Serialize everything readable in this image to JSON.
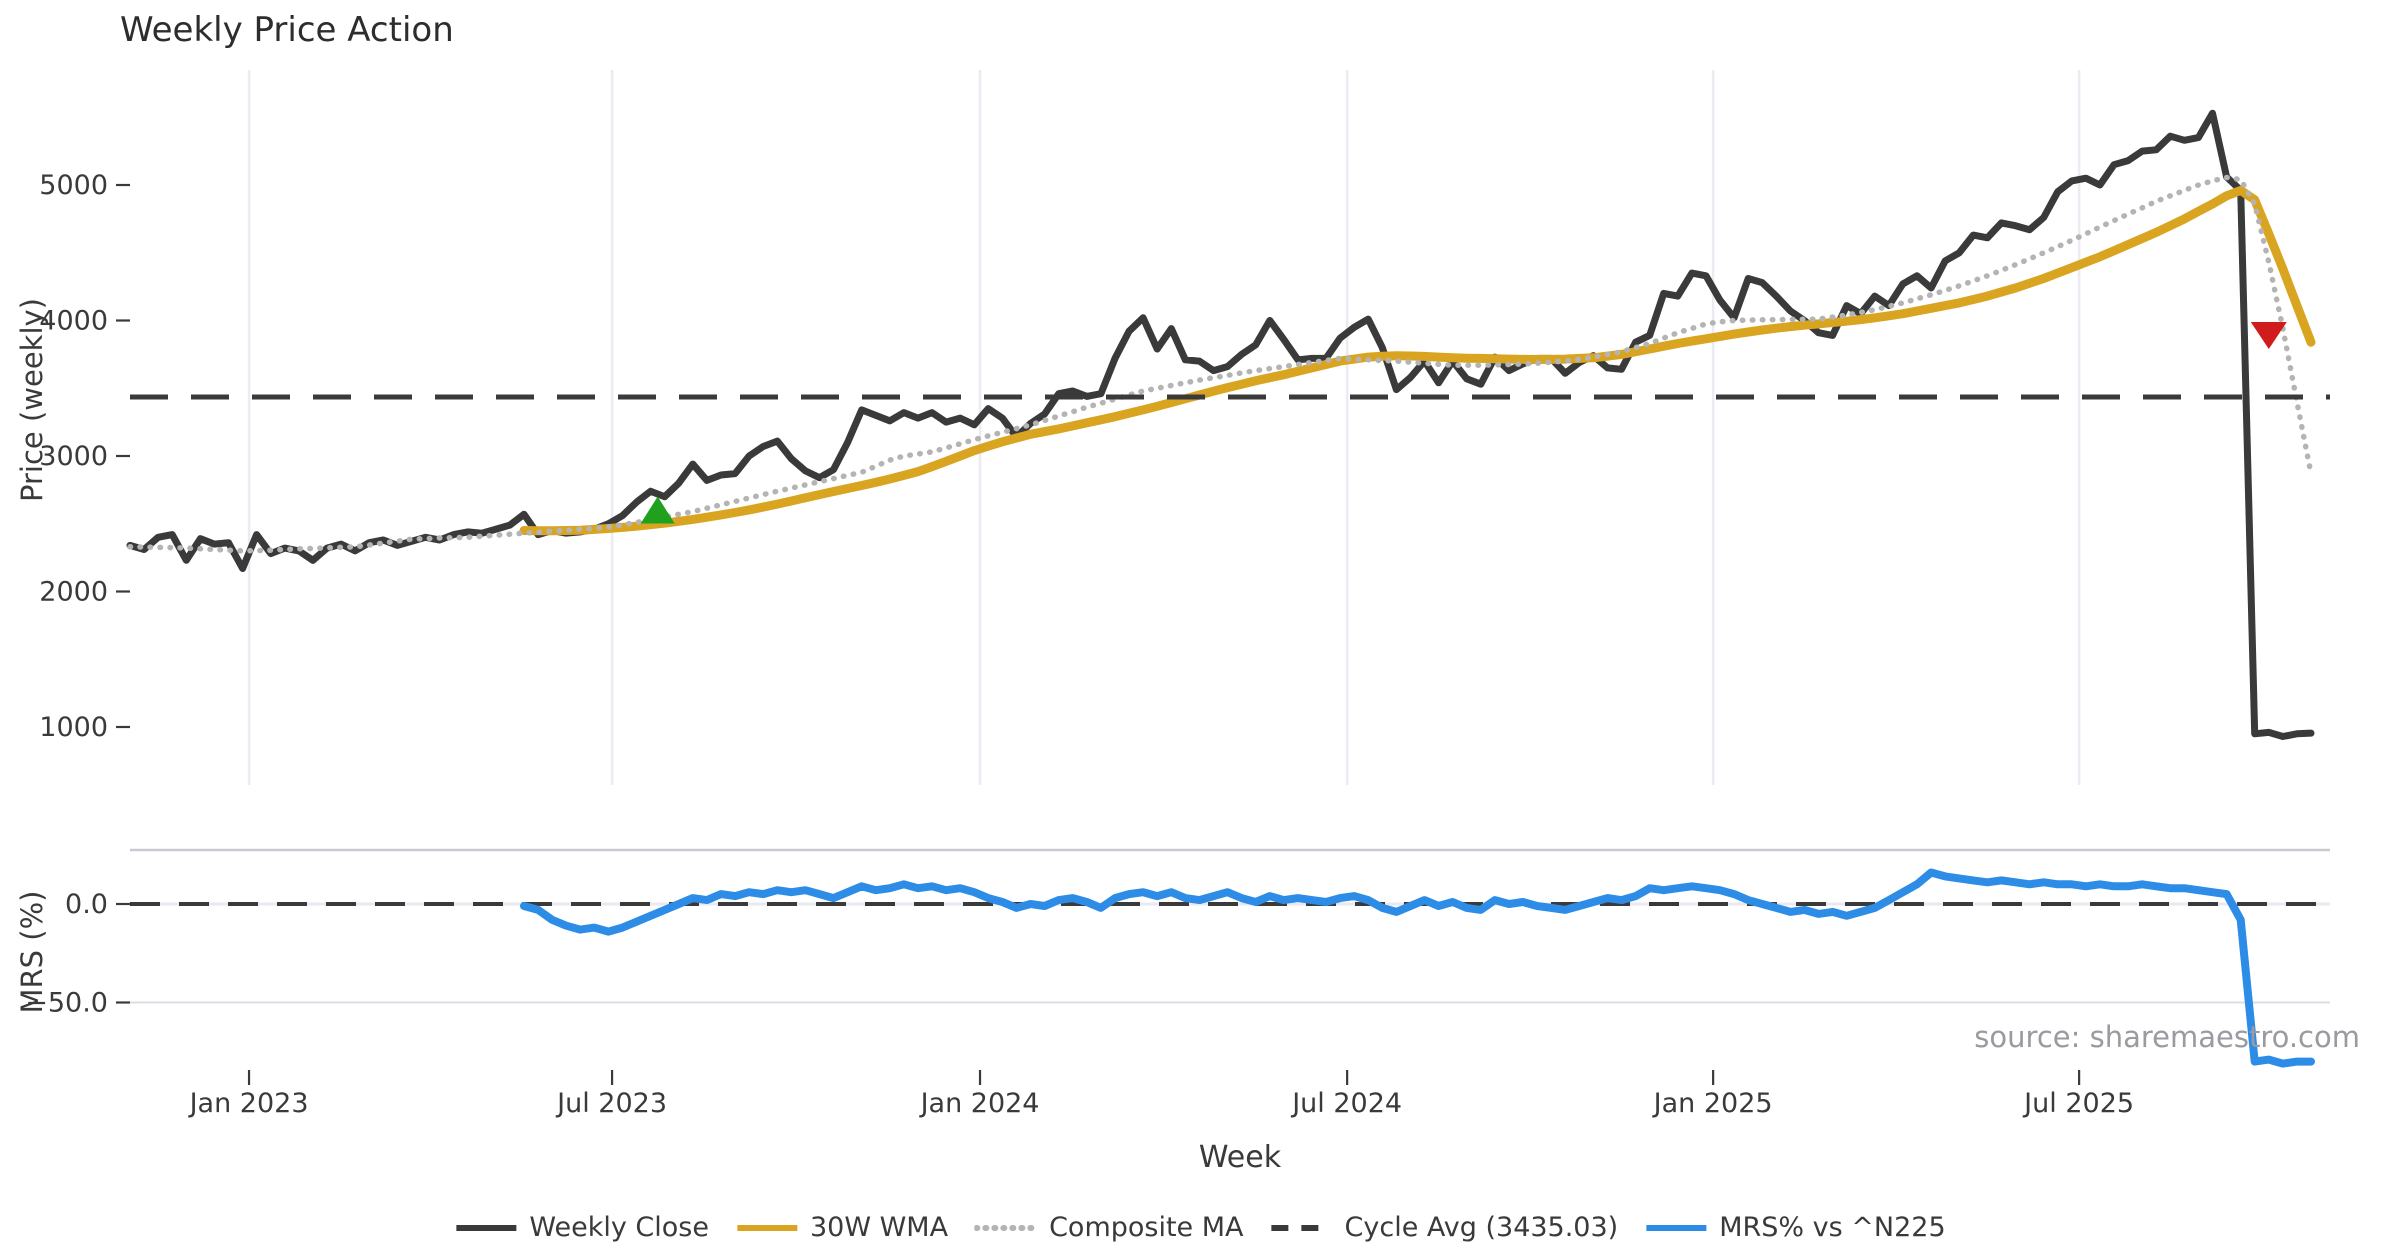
{
  "title": "Weekly Price Action",
  "axes": {
    "price_label": "Price (weekly)",
    "mrs_label": "MRS (%)",
    "x_label": "Week"
  },
  "source": "source: sharemaestro.com",
  "legend": [
    {
      "label": "Weekly Close",
      "color": "#3a3a3a",
      "style": "solid"
    },
    {
      "label": "30W WMA",
      "color": "#d9a521",
      "style": "solid"
    },
    {
      "label": "Composite MA",
      "color": "#b4b4b4",
      "style": "dotted"
    },
    {
      "label": "Cycle Avg (3435.03)",
      "color": "#3a3a3a",
      "style": "dashed"
    },
    {
      "label": "MRS% vs ^N225",
      "color": "#2d8de6",
      "style": "solid"
    }
  ],
  "chart_data": {
    "type": "line",
    "title": "Weekly Price Action",
    "xlabel": "Week",
    "ylabel_top": "Price (weekly)",
    "ylabel_bottom": "MRS (%)",
    "x_unit": "week_index",
    "weeks_total": 156,
    "x_ticks": [
      {
        "label": "Jan 2023",
        "week": 8.46
      },
      {
        "label": "Jul 2023",
        "week": 34.26
      },
      {
        "label": "Jan 2024",
        "week": 60.41
      },
      {
        "label": "Jul 2024",
        "week": 86.5
      },
      {
        "label": "Jan 2025",
        "week": 112.51
      },
      {
        "label": "Jul 2025",
        "week": 138.52
      }
    ],
    "price_axis": {
      "ticks": [
        1000,
        2000,
        3000,
        4000,
        5000
      ],
      "range": [
        600,
        5900
      ],
      "grid": "vertical-only"
    },
    "mrs_axis": {
      "ticks": [
        0.0,
        -50.0
      ],
      "tick_labels": [
        "0.0",
        "−50.0"
      ],
      "range": [
        -90,
        27
      ]
    },
    "cycle_avg": 3435.03,
    "series": [
      {
        "name": "Weekly Close",
        "panel": "price",
        "color": "#3a3a3a",
        "style": "solid",
        "width": 7,
        "start_week": 0,
        "values": [
          2340,
          2310,
          2400,
          2420,
          2230,
          2390,
          2350,
          2360,
          2170,
          2420,
          2280,
          2320,
          2300,
          2230,
          2320,
          2350,
          2300,
          2360,
          2380,
          2340,
          2370,
          2400,
          2380,
          2420,
          2440,
          2430,
          2460,
          2490,
          2570,
          2420,
          2450,
          2430,
          2440,
          2460,
          2500,
          2560,
          2660,
          2740,
          2700,
          2800,
          2940,
          2820,
          2860,
          2870,
          3000,
          3070,
          3110,
          2980,
          2890,
          2840,
          2900,
          3100,
          3340,
          3300,
          3260,
          3320,
          3280,
          3320,
          3250,
          3280,
          3230,
          3350,
          3280,
          3140,
          3240,
          3310,
          3460,
          3480,
          3440,
          3460,
          3720,
          3920,
          4020,
          3790,
          3940,
          3710,
          3700,
          3630,
          3660,
          3750,
          3820,
          4000,
          3860,
          3710,
          3720,
          3720,
          3870,
          3950,
          4010,
          3800,
          3490,
          3580,
          3700,
          3540,
          3700,
          3570,
          3530,
          3730,
          3630,
          3680,
          3720,
          3720,
          3610,
          3690,
          3740,
          3650,
          3640,
          3840,
          3890,
          4200,
          4180,
          4350,
          4330,
          4150,
          4020,
          4310,
          4280,
          4180,
          4070,
          4000,
          3910,
          3890,
          4110,
          4050,
          4180,
          4110,
          4270,
          4330,
          4240,
          4440,
          4500,
          4630,
          4610,
          4720,
          4700,
          4670,
          4760,
          4950,
          5030,
          5050,
          5000,
          5150,
          5180,
          5250,
          5260,
          5360,
          5330,
          5350,
          5530,
          5060,
          4960,
          950,
          960,
          930,
          950,
          955
        ]
      },
      {
        "name": "30W WMA",
        "panel": "price",
        "color": "#d9a521",
        "style": "solid",
        "width": 9,
        "start_week": 28,
        "values": [
          2450,
          2449,
          2448,
          2450,
          2452,
          2458,
          2465,
          2473,
          2482,
          2493,
          2505,
          2518,
          2532,
          2548,
          2565,
          2583,
          2602,
          2623,
          2645,
          2668,
          2692,
          2715,
          2738,
          2760,
          2782,
          2806,
          2830,
          2857,
          2885,
          2922,
          2960,
          3000,
          3040,
          3073,
          3105,
          3133,
          3160,
          3180,
          3200,
          3222,
          3245,
          3267,
          3290,
          3315,
          3340,
          3367,
          3395,
          3422,
          3450,
          3478,
          3505,
          3530,
          3555,
          3578,
          3600,
          3625,
          3650,
          3675,
          3700,
          3715,
          3730,
          3736,
          3740,
          3738,
          3735,
          3730,
          3725,
          3722,
          3720,
          3717,
          3715,
          3713,
          3712,
          3713,
          3715,
          3720,
          3725,
          3737,
          3750,
          3770,
          3790,
          3810,
          3830,
          3848,
          3865,
          3883,
          3900,
          3915,
          3930,
          3943,
          3955,
          3965,
          3975,
          3985,
          3995,
          4007,
          4020,
          4035,
          4050,
          4070,
          4090,
          4110,
          4130,
          4155,
          4180,
          4210,
          4240,
          4275,
          4310,
          4350,
          4390,
          4430,
          4470,
          4515,
          4560,
          4605,
          4650,
          4700,
          4750,
          4805,
          4860,
          4920,
          4960,
          4890,
          4640,
          4380,
          4110,
          3840
        ]
      },
      {
        "name": "Composite MA",
        "panel": "price",
        "color": "#b4b4b4",
        "style": "dotted",
        "width": 5.5,
        "start_week": 0,
        "values": [
          2330,
          2328,
          2326,
          2324,
          2320,
          2315,
          2310,
          2305,
          2300,
          2302,
          2305,
          2310,
          2315,
          2318,
          2322,
          2326,
          2330,
          2343,
          2357,
          2372,
          2386,
          2390,
          2395,
          2398,
          2400,
          2408,
          2415,
          2423,
          2430,
          2437,
          2445,
          2452,
          2458,
          2466,
          2475,
          2492,
          2510,
          2530,
          2550,
          2570,
          2590,
          2615,
          2640,
          2665,
          2690,
          2715,
          2740,
          2763,
          2787,
          2810,
          2833,
          2857,
          2880,
          2925,
          2970,
          3000,
          3015,
          3030,
          3060,
          3090,
          3120,
          3148,
          3175,
          3202,
          3230,
          3262,
          3295,
          3327,
          3360,
          3390,
          3420,
          3450,
          3480,
          3500,
          3520,
          3540,
          3560,
          3578,
          3595,
          3613,
          3630,
          3645,
          3660,
          3675,
          3690,
          3705,
          3720,
          3715,
          3710,
          3705,
          3700,
          3692,
          3685,
          3677,
          3670,
          3670,
          3670,
          3672,
          3675,
          3680,
          3685,
          3692,
          3700,
          3715,
          3730,
          3750,
          3770,
          3800,
          3830,
          3870,
          3910,
          3942,
          3975,
          3990,
          4000,
          4003,
          4005,
          4006,
          4008,
          4009,
          4010,
          4025,
          4040,
          4060,
          4080,
          4105,
          4130,
          4160,
          4190,
          4222,
          4255,
          4292,
          4330,
          4370,
          4412,
          4455,
          4500,
          4545,
          4592,
          4640,
          4690,
          4737,
          4785,
          4832,
          4880,
          4920,
          4960,
          5000,
          5030,
          5055,
          5040,
          4860,
          4430,
          3940,
          3400,
          2870
        ]
      },
      {
        "name": "Cycle Avg",
        "panel": "price",
        "color": "#3a3a3a",
        "style": "dashed",
        "width": 5,
        "constant": 3435.03
      },
      {
        "name": "MRS% vs ^N225",
        "panel": "mrs",
        "color": "#2d8de6",
        "style": "solid",
        "width": 8,
        "start_week": 28,
        "values": [
          -1,
          -3,
          -8,
          -11,
          -13,
          -12,
          -14,
          -12,
          -9,
          -6,
          -3,
          0,
          3,
          2,
          5,
          4,
          6,
          5,
          7,
          6,
          7,
          5,
          3,
          6,
          9,
          7,
          8,
          10,
          8,
          9,
          7,
          8,
          6,
          3,
          1,
          -2,
          0,
          -1,
          2,
          3,
          1,
          -2,
          3,
          5,
          6,
          4,
          6,
          3,
          2,
          4,
          6,
          3,
          1,
          4,
          2,
          3,
          2,
          1,
          3,
          4,
          2,
          -2,
          -4,
          -1,
          2,
          -1,
          1,
          -2,
          -3,
          2,
          0,
          1,
          -1,
          -2,
          -3,
          -1,
          1,
          3,
          2,
          4,
          8,
          7,
          8,
          9,
          8,
          7,
          5,
          2,
          0,
          -2,
          -4,
          -3,
          -5,
          -4,
          -6,
          -4,
          -2,
          2,
          6,
          10,
          16,
          14,
          13,
          12,
          11,
          12,
          11,
          10,
          11,
          10,
          10,
          9,
          10,
          9,
          9,
          10,
          9,
          8,
          8,
          7,
          6,
          5,
          -8,
          -80,
          -79,
          -81,
          -80,
          -80
        ]
      }
    ],
    "markers": [
      {
        "type": "buy-signal",
        "shape": "triangle-up",
        "color": "#1fa11f",
        "week": 37.5,
        "price": 2590
      },
      {
        "type": "sell-signal",
        "shape": "triangle-down",
        "color": "#d01c1c",
        "week": 152,
        "price": 3900
      }
    ]
  }
}
